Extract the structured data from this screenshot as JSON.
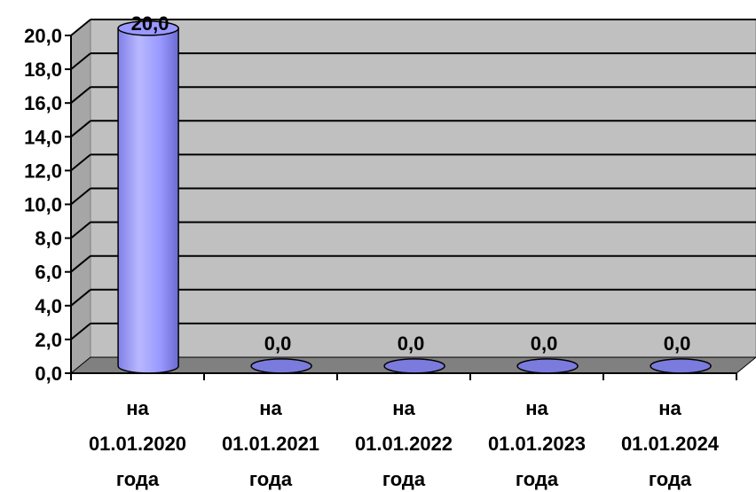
{
  "chart_data": {
    "type": "bar",
    "bar_shape": "cylinder-3d",
    "categories": [
      [
        "на",
        "01.01.2020",
        "года"
      ],
      [
        "на",
        "01.01.2021",
        "года"
      ],
      [
        "на",
        "01.01.2022",
        "года"
      ],
      [
        "на",
        "01.01.2023",
        "года"
      ],
      [
        "на",
        "01.01.2024",
        "года"
      ]
    ],
    "values": [
      20.0,
      0.0,
      0.0,
      0.0,
      0.0
    ],
    "data_labels": [
      "20,0",
      "0,0",
      "0,0",
      "0,0",
      "0,0"
    ],
    "ylim": [
      0,
      20
    ],
    "yticks": [
      0,
      2,
      4,
      6,
      8,
      10,
      12,
      14,
      16,
      18,
      20
    ],
    "ytick_labels": [
      "0,0",
      "2,0",
      "4,0",
      "6,0",
      "8,0",
      "10,0",
      "12,0",
      "14,0",
      "16,0",
      "18,0",
      "20,0"
    ],
    "title": "",
    "xlabel": "",
    "ylabel": "",
    "grid": true,
    "legend": "none",
    "colors": {
      "bar": "#9999ff",
      "bar_dark": "#5555b8",
      "bar_outline": "#000000",
      "back_wall": "#c0c0c0",
      "side_wall": "#a6a6a6",
      "floor": "#808080",
      "grid": "#000000"
    }
  }
}
